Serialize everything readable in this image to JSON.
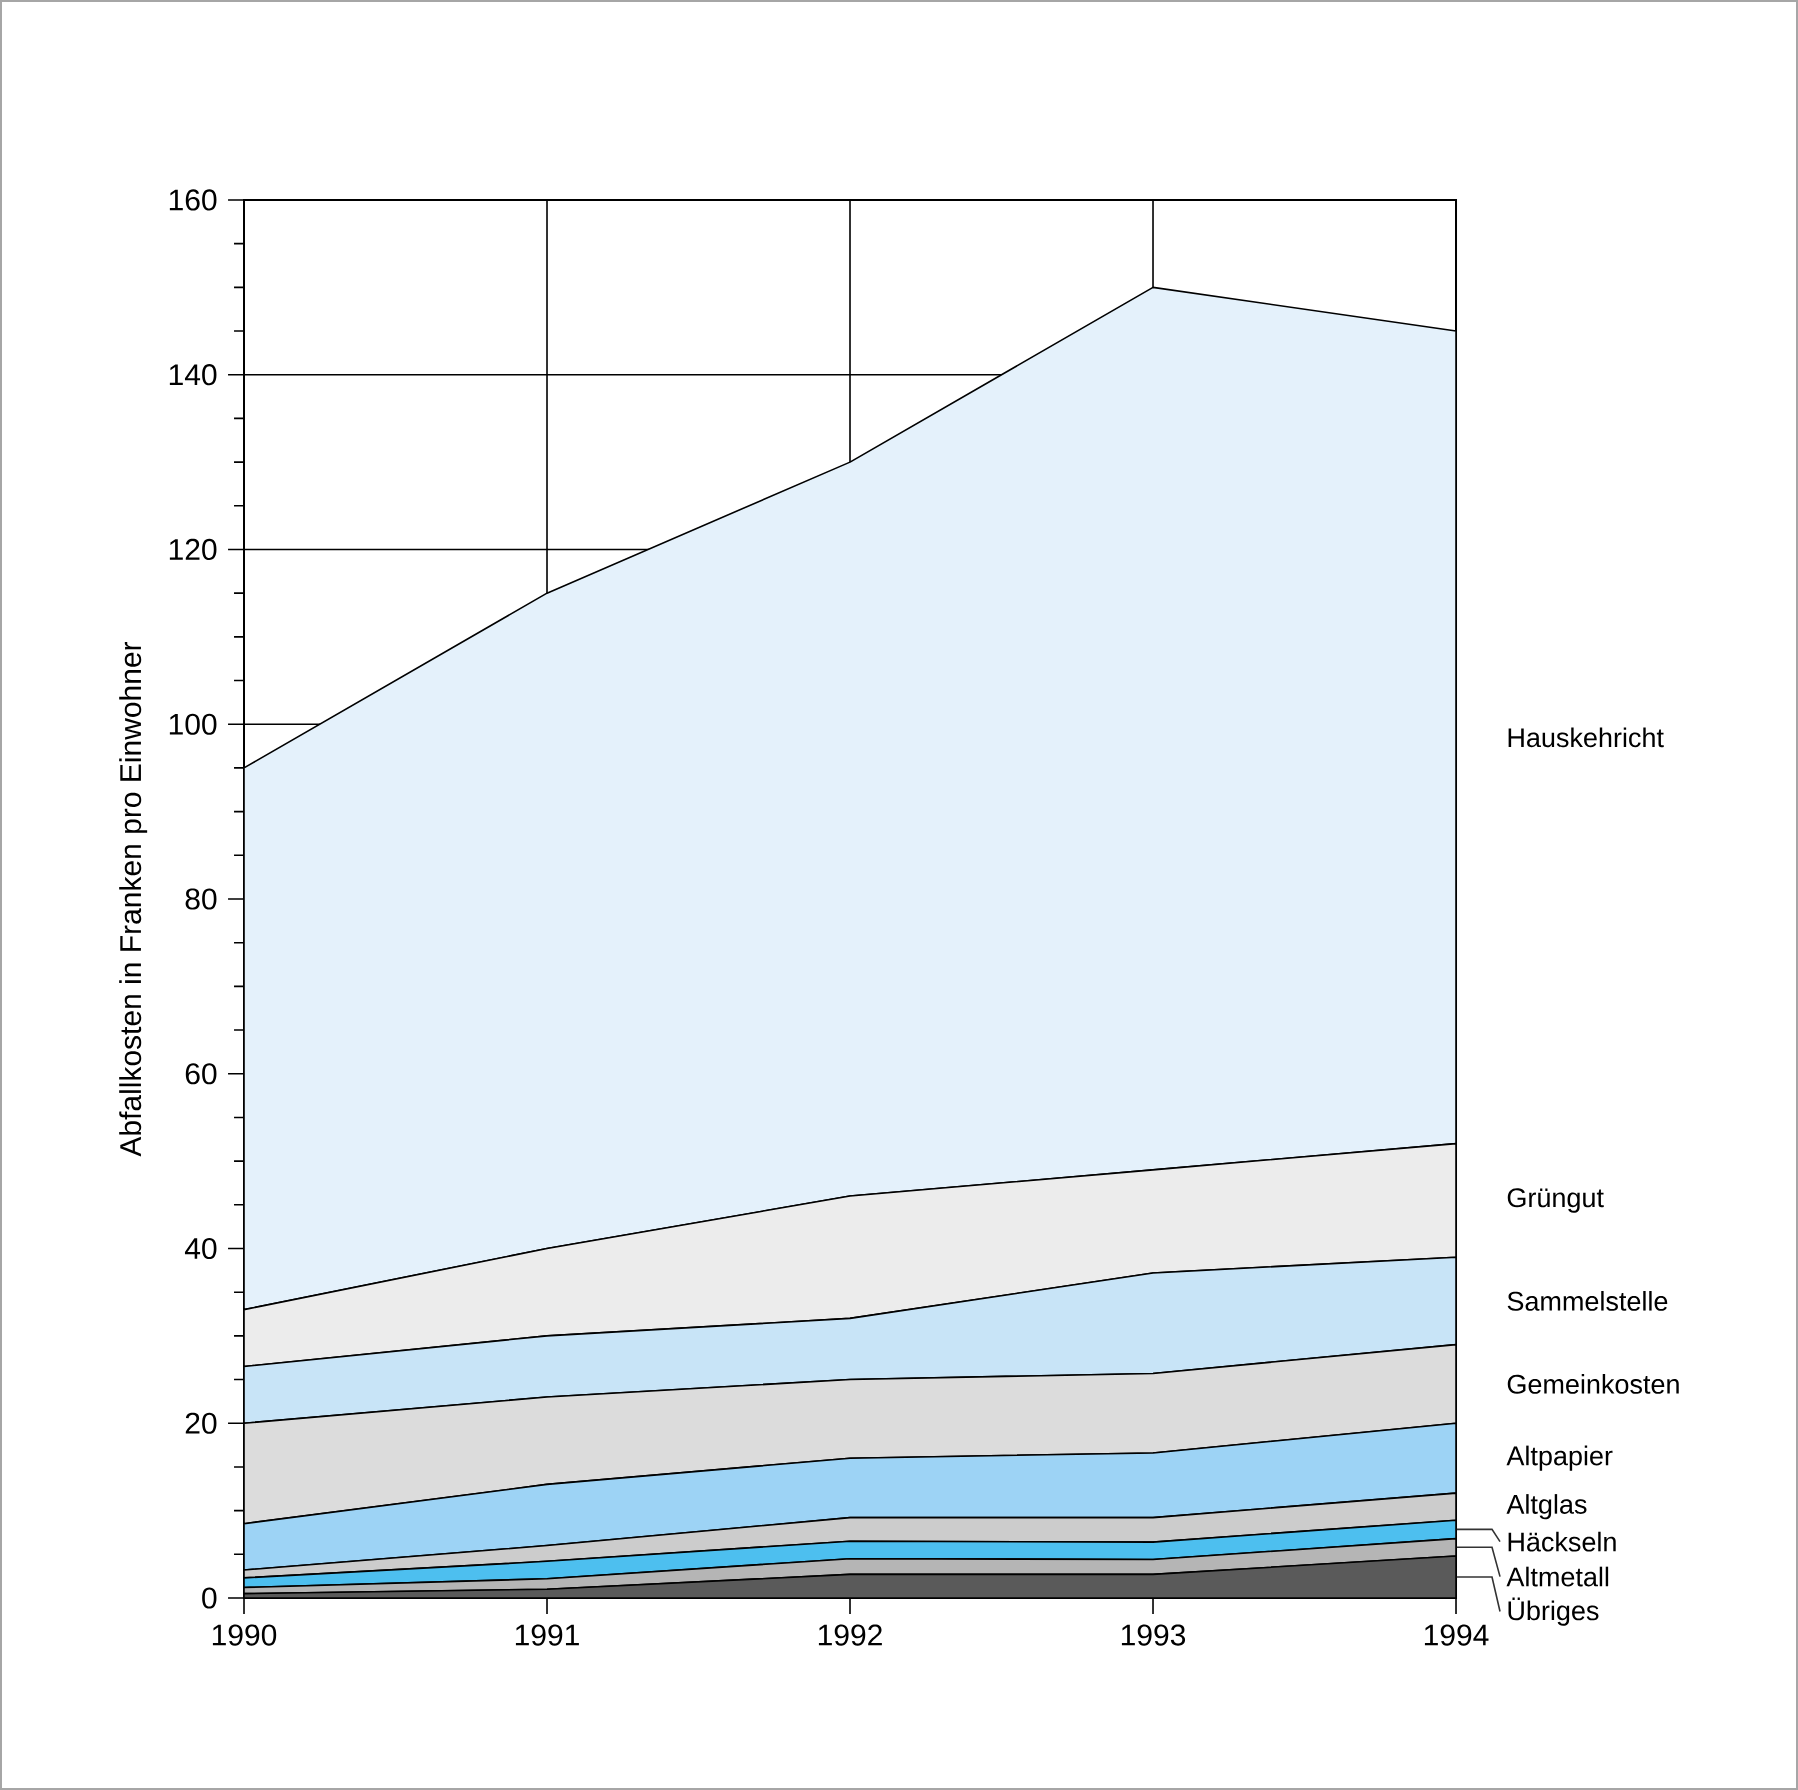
{
  "chart_data": {
    "type": "area",
    "stacked": true,
    "ylabel": "Abfallkosten in Franken pro Einwohner",
    "x": [
      1990,
      1991,
      1992,
      1993,
      1994
    ],
    "xlim": [
      1990,
      1994
    ],
    "xticks": [
      1990,
      1991,
      1992,
      1993,
      1994
    ],
    "ylim": [
      0,
      160
    ],
    "yticks": [
      0,
      20,
      40,
      60,
      80,
      100,
      120,
      140,
      160
    ],
    "grid": true,
    "series": [
      {
        "name": "Übriges",
        "color": "#5a5a5a",
        "values": [
          0.5,
          1,
          2.7,
          2.7,
          4.8
        ]
      },
      {
        "name": "Altmetall",
        "color": "#b5b5b5",
        "values": [
          0.7,
          1.2,
          1.8,
          1.7,
          2
        ]
      },
      {
        "name": "Häckseln",
        "color": "#4dbfef",
        "values": [
          1.1,
          2,
          2,
          2,
          2.1
        ]
      },
      {
        "name": "Altglas",
        "color": "#cccccc",
        "values": [
          0.9,
          1.8,
          2.7,
          2.8,
          3.1
        ]
      },
      {
        "name": "Altpapier",
        "color": "#9dd3f5",
        "values": [
          5.3,
          7,
          6.8,
          7.4,
          8
        ]
      },
      {
        "name": "Gemeinkosten",
        "color": "#dcdcdc",
        "values": [
          11.5,
          10,
          9,
          9.1,
          9
        ]
      },
      {
        "name": "Sammelstelle",
        "color": "#c8e4f7",
        "values": [
          6.5,
          7,
          7,
          11.5,
          10
        ]
      },
      {
        "name": "Grüngut",
        "color": "#ececec",
        "values": [
          6.5,
          10,
          14,
          11.8,
          13
        ]
      },
      {
        "name": "Hauskehricht",
        "color": "#e4f1fb",
        "values": [
          62,
          75,
          84,
          101,
          93
        ]
      }
    ]
  }
}
